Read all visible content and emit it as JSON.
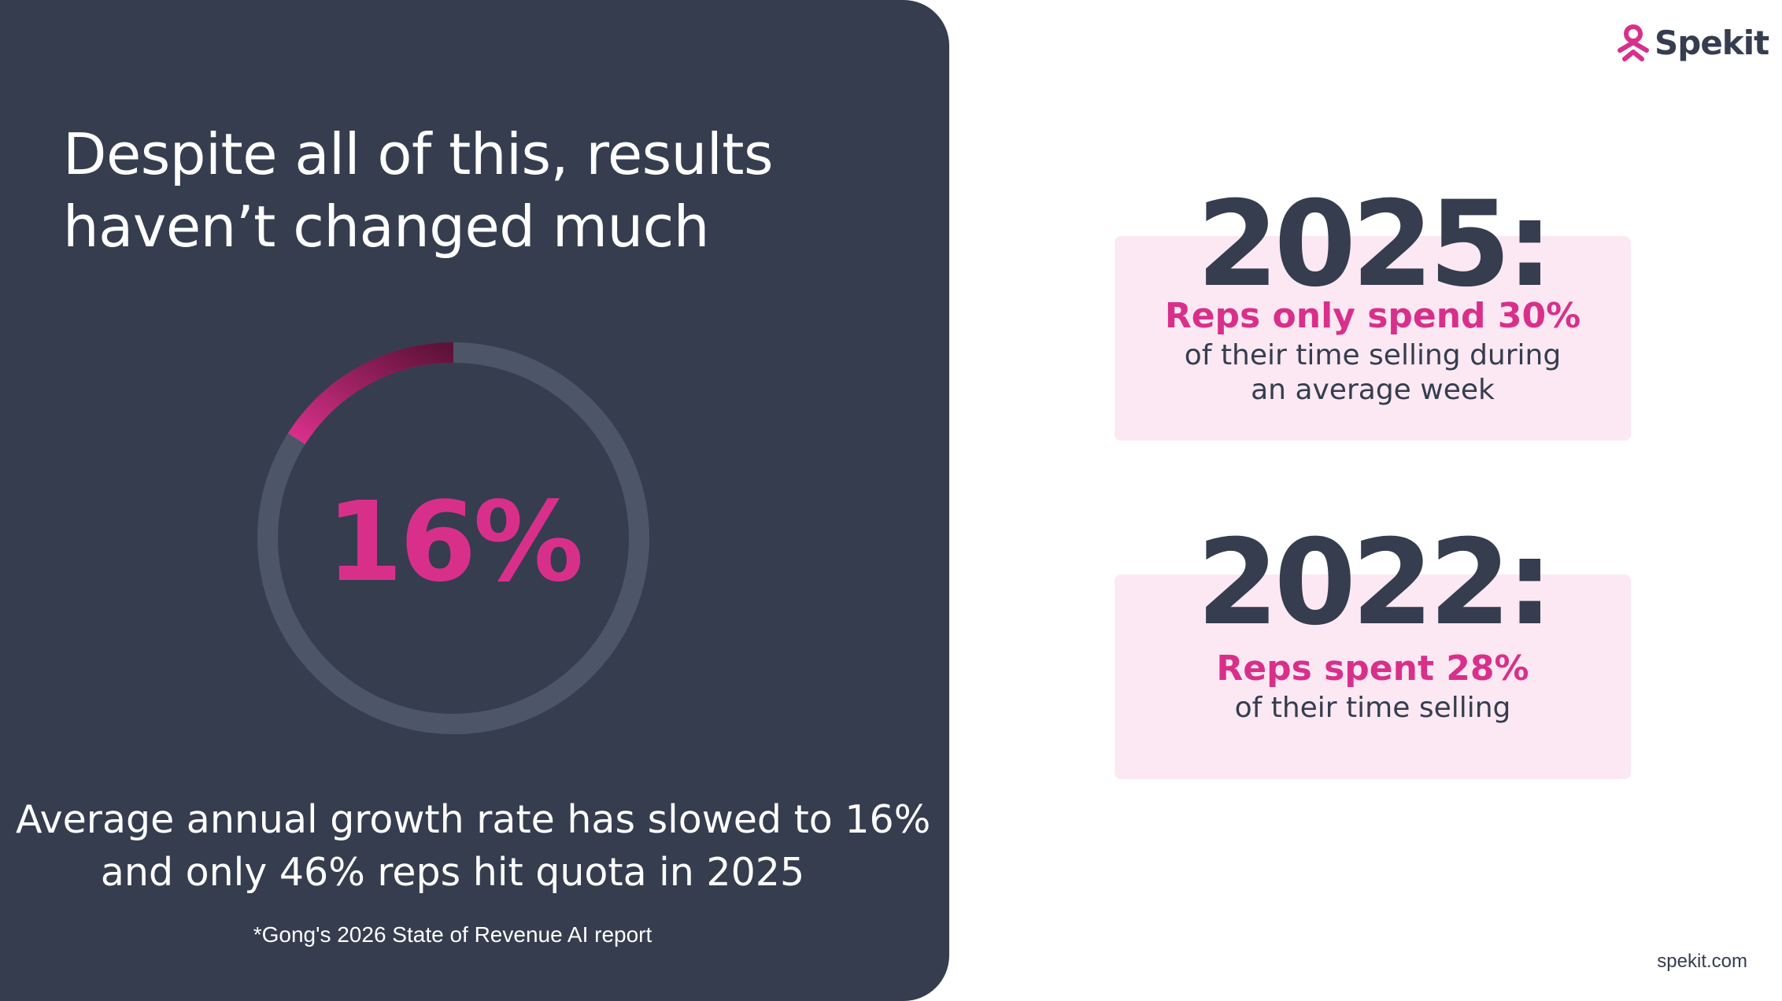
{
  "brand": {
    "logo_text": "Spekit",
    "logo_icon": "spekit-logo-icon",
    "accent_color": "#d8308a",
    "dark_color": "#353d4f",
    "card_color": "#fce8f2"
  },
  "left": {
    "headline": "Despite all of this, results haven’t changed much",
    "ring": {
      "value_label": "16%",
      "percent": 16,
      "track_color": "#4d5669",
      "fill_start_color": "#d8308a",
      "fill_end_color": "#5e1238"
    },
    "summary_line1": "Average annual growth rate has slowed to 16%",
    "summary_line2": "and only 46% reps hit quota in 2025",
    "source": "*Gong's 2026 State of Revenue AI report"
  },
  "stats": [
    {
      "year": "2025:",
      "highlight": "Reps only spend 30%",
      "desc_line1": "of their time selling during",
      "desc_line2": "an average week"
    },
    {
      "year": "2022:",
      "highlight": "Reps spent 28%",
      "desc_line1": "of their time selling",
      "desc_line2": ""
    }
  ],
  "footer": {
    "url": "spekit.com"
  }
}
